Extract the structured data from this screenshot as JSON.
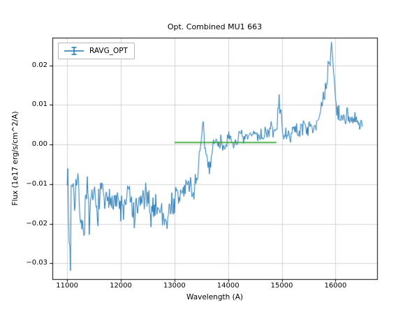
{
  "figure": {
    "background": "#ffffff"
  },
  "chart_data": {
    "type": "line",
    "title": "Opt. Combined MU1 663",
    "xlabel": "Wavelength (A)",
    "ylabel": "Flux (1e17 erg/s/cm^2/A)",
    "xlim": [
      10725,
      16775
    ],
    "ylim": [
      -0.034,
      0.027
    ],
    "xticks": [
      11000,
      12000,
      13000,
      14000,
      15000,
      16000
    ],
    "yticks": [
      -0.03,
      -0.02,
      -0.01,
      0.0,
      0.01,
      0.02
    ],
    "grid": true,
    "grid_color": "#d3d3d3",
    "spine_color": "#000000",
    "legend": {
      "position": "upper left",
      "entries": [
        {
          "label": "RAVG_OPT",
          "color": "#1f77b4",
          "marker": "errorbar"
        }
      ]
    },
    "series": [
      {
        "name": "RAVG_OPT",
        "color": "#1f77b4",
        "style": "noisy-line",
        "line_width": 1,
        "x_start": 11000,
        "x_end": 16500,
        "x_step": 12.5,
        "noise_seed": 7,
        "noise_sigma_segments": [
          [
            11500,
            0.0038
          ],
          [
            13500,
            0.0028
          ],
          [
            14800,
            0.0014
          ],
          [
            15750,
            0.0014
          ],
          [
            16500,
            0.0018
          ]
        ],
        "trend": [
          [
            11000,
            -0.004
          ],
          [
            11030,
            -0.02
          ],
          [
            11060,
            -0.031
          ],
          [
            11080,
            -0.006
          ],
          [
            11120,
            -0.013
          ],
          [
            11180,
            -0.01
          ],
          [
            11250,
            -0.016
          ],
          [
            11300,
            -0.024
          ],
          [
            11360,
            -0.009
          ],
          [
            11420,
            -0.022
          ],
          [
            11480,
            -0.012
          ],
          [
            11550,
            -0.017
          ],
          [
            11650,
            -0.012
          ],
          [
            11750,
            -0.016
          ],
          [
            11850,
            -0.012
          ],
          [
            11950,
            -0.015
          ],
          [
            12050,
            -0.017
          ],
          [
            12150,
            -0.012
          ],
          [
            12250,
            -0.019
          ],
          [
            12350,
            -0.015
          ],
          [
            12450,
            -0.013
          ],
          [
            12550,
            -0.017
          ],
          [
            12650,
            -0.015
          ],
          [
            12750,
            -0.017
          ],
          [
            12850,
            -0.019
          ],
          [
            12950,
            -0.015
          ],
          [
            13050,
            -0.014
          ],
          [
            13150,
            -0.012
          ],
          [
            13250,
            -0.01
          ],
          [
            13350,
            -0.012
          ],
          [
            13420,
            -0.008
          ],
          [
            13480,
            -0.003
          ],
          [
            13530,
            0.005
          ],
          [
            13580,
            -0.002
          ],
          [
            13650,
            -0.006
          ],
          [
            13720,
            0.0
          ],
          [
            13800,
            0.001
          ],
          [
            13900,
            0.0
          ],
          [
            14000,
            0.001
          ],
          [
            14100,
            0.0
          ],
          [
            14200,
            0.002
          ],
          [
            14300,
            0.001
          ],
          [
            14400,
            0.002
          ],
          [
            14500,
            0.003
          ],
          [
            14600,
            0.002
          ],
          [
            14700,
            0.003
          ],
          [
            14800,
            0.004
          ],
          [
            14900,
            0.003
          ],
          [
            14950,
            0.0115
          ],
          [
            15010,
            0.004
          ],
          [
            15100,
            0.001
          ],
          [
            15200,
            0.004
          ],
          [
            15300,
            0.003
          ],
          [
            15400,
            0.005
          ],
          [
            15500,
            0.004
          ],
          [
            15600,
            0.005
          ],
          [
            15700,
            0.007
          ],
          [
            15800,
            0.012
          ],
          [
            15870,
            0.019
          ],
          [
            15930,
            0.0255
          ],
          [
            15980,
            0.015
          ],
          [
            16030,
            0.009
          ],
          [
            16100,
            0.006
          ],
          [
            16200,
            0.008
          ],
          [
            16300,
            0.005
          ],
          [
            16400,
            0.006
          ],
          [
            16500,
            0.004
          ]
        ]
      },
      {
        "name": "reference-line",
        "color": "#2ca02c",
        "style": "hline-segment",
        "line_width": 2,
        "x": [
          13000,
          14900
        ],
        "y": 0.0005
      }
    ]
  }
}
